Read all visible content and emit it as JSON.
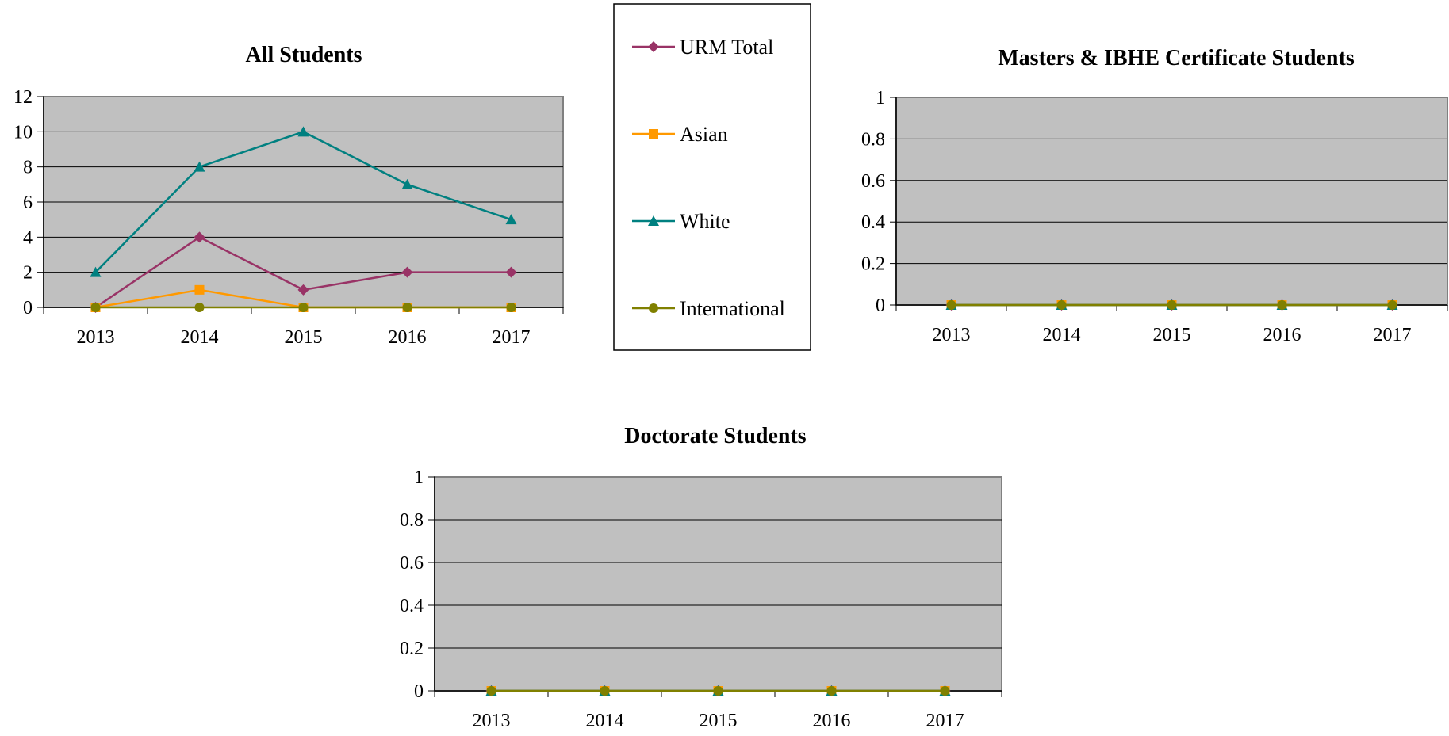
{
  "legend": {
    "items": [
      {
        "label": "URM Total",
        "color": "#993366",
        "marker": "diamond"
      },
      {
        "label": "Asian",
        "color": "#ff9900",
        "marker": "square"
      },
      {
        "label": "White",
        "color": "#008080",
        "marker": "triangle"
      },
      {
        "label": "International",
        "color": "#808000",
        "marker": "circle"
      }
    ]
  },
  "chart_data": [
    {
      "type": "line",
      "title": "All Students",
      "categories": [
        "2013",
        "2014",
        "2015",
        "2016",
        "2017"
      ],
      "ylim": [
        0,
        12
      ],
      "yticks": [
        0,
        2,
        4,
        6,
        8,
        10,
        12
      ],
      "grid": true,
      "series": [
        {
          "name": "URM Total",
          "values": [
            0,
            4,
            1,
            2,
            2
          ]
        },
        {
          "name": "Asian",
          "values": [
            0,
            1,
            0,
            0,
            0
          ]
        },
        {
          "name": "White",
          "values": [
            2,
            8,
            10,
            7,
            5
          ]
        },
        {
          "name": "International",
          "values": [
            0,
            0,
            0,
            0,
            0
          ]
        }
      ]
    },
    {
      "type": "line",
      "title": "Masters & IBHE Certificate Students",
      "categories": [
        "2013",
        "2014",
        "2015",
        "2016",
        "2017"
      ],
      "ylim": [
        0,
        1
      ],
      "yticks": [
        0,
        0.2,
        0.4,
        0.6,
        0.8,
        1
      ],
      "grid": true,
      "series": [
        {
          "name": "URM Total",
          "values": [
            0,
            0,
            0,
            0,
            0
          ]
        },
        {
          "name": "Asian",
          "values": [
            0,
            0,
            0,
            0,
            0
          ]
        },
        {
          "name": "White",
          "values": [
            0,
            0,
            0,
            0,
            0
          ]
        },
        {
          "name": "International",
          "values": [
            0,
            0,
            0,
            0,
            0
          ]
        }
      ]
    },
    {
      "type": "line",
      "title": "Doctorate Students",
      "categories": [
        "2013",
        "2014",
        "2015",
        "2016",
        "2017"
      ],
      "ylim": [
        0,
        1
      ],
      "yticks": [
        0,
        0.2,
        0.4,
        0.6,
        0.8,
        1
      ],
      "grid": true,
      "series": [
        {
          "name": "URM Total",
          "values": [
            0,
            0,
            0,
            0,
            0
          ]
        },
        {
          "name": "Asian",
          "values": [
            0,
            0,
            0,
            0,
            0
          ]
        },
        {
          "name": "White",
          "values": [
            0,
            0,
            0,
            0,
            0
          ]
        },
        {
          "name": "International",
          "values": [
            0,
            0,
            0,
            0,
            0
          ]
        }
      ]
    }
  ]
}
